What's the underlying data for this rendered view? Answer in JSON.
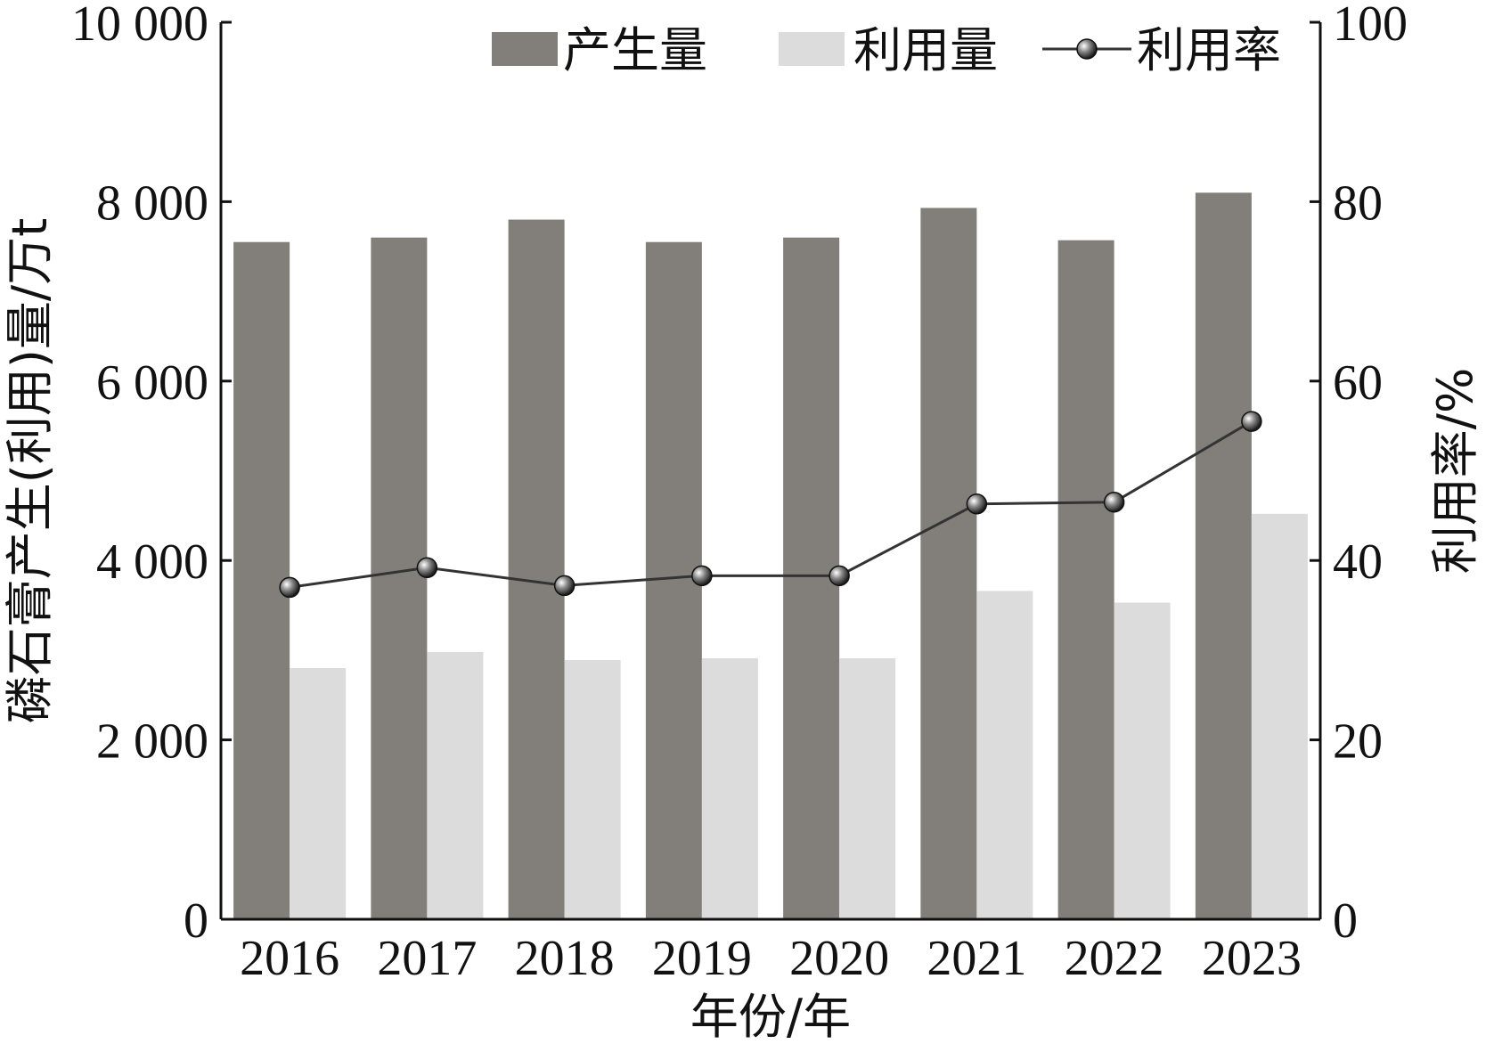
{
  "chart_data": {
    "type": "bar",
    "categories": [
      "2016",
      "2017",
      "2018",
      "2019",
      "2020",
      "2021",
      "2022",
      "2023"
    ],
    "series": [
      {
        "name": "产生量",
        "kind": "bar",
        "axis": "left",
        "color": "#827f7a",
        "values": [
          7550,
          7600,
          7800,
          7550,
          7600,
          7930,
          7570,
          8100
        ]
      },
      {
        "name": "利用量",
        "kind": "bar",
        "axis": "left",
        "color": "#dcdcdc",
        "values": [
          2800,
          2980,
          2890,
          2910,
          2910,
          3660,
          3530,
          4520
        ]
      },
      {
        "name": "利用率",
        "kind": "line",
        "axis": "right",
        "color": "#333333",
        "values": [
          37.0,
          39.2,
          37.2,
          38.3,
          38.3,
          46.3,
          46.5,
          55.5
        ]
      }
    ],
    "title": "",
    "xlabel": "年份/年",
    "ylabel": "磷石膏产生(利用)量/万t",
    "y2label": "利用率/%",
    "ylim": [
      0,
      10000
    ],
    "y2lim": [
      0,
      100
    ],
    "yticks": [
      "0",
      "2 000",
      "4 000",
      "6 000",
      "8 000",
      "10 000"
    ],
    "y2ticks": [
      "0",
      "20",
      "40",
      "60",
      "80",
      "100"
    ],
    "grid": false,
    "legend_position": "top-right"
  }
}
